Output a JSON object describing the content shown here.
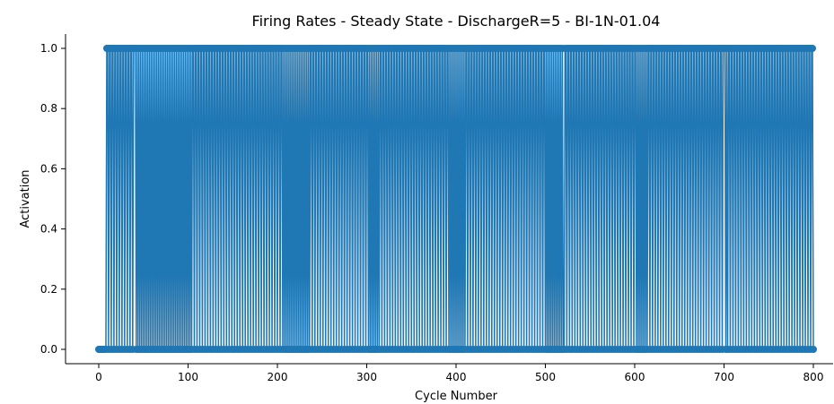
{
  "chart_data": {
    "type": "line",
    "title": "Firing Rates - Steady State - DischargeR=5 - BI-1N-01.04",
    "xlabel": "Cycle Number",
    "ylabel": "Activation",
    "xlim": [
      -40,
      822
    ],
    "ylim": [
      -0.05,
      1.05
    ],
    "xticks": [
      0,
      100,
      200,
      300,
      400,
      500,
      600,
      700,
      800
    ],
    "yticks": [
      0.0,
      0.2,
      0.4,
      0.6,
      0.8,
      1.0
    ],
    "xtick_labels": [
      "0",
      "100",
      "200",
      "300",
      "400",
      "500",
      "600",
      "700",
      "800"
    ],
    "ytick_labels": [
      "0.0",
      "0.2",
      "0.4",
      "0.6",
      "0.8",
      "1.0"
    ],
    "grid": false,
    "marker": "circle",
    "color": "#1f77b4",
    "series": [
      {
        "x_start": 0,
        "x_end": 800,
        "x_step": 1,
        "initial_zero_run_end": 8,
        "pattern": "Alternating 0/1 activation after cycle 8: each cycle value is 1 except at periodic spike-reset points (0), with denser reset bands between roughly 40–105, 205–235, 300–315, 390–410, 500–520, 600–615, 700–705.",
        "dense_one_ranges": [
          [
            9,
            40
          ],
          [
            106,
            205
          ],
          [
            236,
            300
          ],
          [
            316,
            390
          ],
          [
            411,
            500
          ],
          [
            521,
            600
          ],
          [
            616,
            700
          ],
          [
            706,
            800
          ]
        ],
        "reset_period_in_dense": 3,
        "reset_period_in_band": 2
      }
    ]
  }
}
